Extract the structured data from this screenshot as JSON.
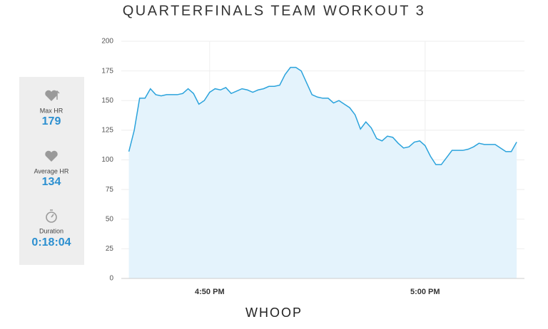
{
  "title": "QUARTERFINALS TEAM WORKOUT 3",
  "stats": [
    {
      "label": "Max HR",
      "value": "179"
    },
    {
      "label": "Average HR",
      "value": "134"
    },
    {
      "label": "Duration",
      "value": "0:18:04"
    }
  ],
  "footer": "WHOOP",
  "chart_data": {
    "type": "line",
    "x": [
      46.25,
      46.5,
      46.75,
      47,
      47.25,
      47.5,
      47.75,
      48,
      48.25,
      48.5,
      48.75,
      49,
      49.25,
      49.5,
      49.75,
      50,
      50.25,
      50.5,
      50.75,
      51,
      51.25,
      51.5,
      51.75,
      52,
      52.25,
      52.5,
      52.75,
      53,
      53.25,
      53.5,
      53.75,
      54,
      54.25,
      54.5,
      54.75,
      55,
      55.25,
      55.5,
      55.75,
      56,
      56.25,
      56.5,
      56.75,
      57,
      57.25,
      57.5,
      57.75,
      58,
      58.25,
      58.5,
      58.75,
      59,
      59.25,
      59.5,
      59.75,
      60,
      60.25,
      60.5,
      60.75,
      61,
      61.25,
      61.5,
      61.75,
      62,
      62.25,
      62.5,
      62.75,
      63,
      63.25,
      63.5,
      63.75,
      64,
      64.25
    ],
    "values": [
      107,
      125,
      152,
      152,
      160,
      155,
      154,
      155,
      155,
      155,
      156,
      160,
      156,
      147,
      150,
      157,
      160,
      159,
      161,
      156,
      158,
      160,
      159,
      157,
      159,
      160,
      162,
      162,
      163,
      172,
      178,
      178,
      175,
      165,
      155,
      153,
      152,
      152,
      148,
      150,
      147,
      144,
      138,
      126,
      132,
      127,
      118,
      116,
      120,
      119,
      114,
      110,
      111,
      115,
      116,
      112,
      103,
      96,
      96,
      102,
      108,
      108,
      108,
      109,
      111,
      114,
      113,
      113,
      113,
      110,
      107,
      107,
      115
    ],
    "color": "#2ba3dc",
    "fill_color": "#e4f3fc",
    "xlim": [
      46.23,
      64.28
    ],
    "ylim": [
      0,
      200
    ],
    "yticks": [
      0,
      25,
      50,
      75,
      100,
      125,
      150,
      175,
      200
    ],
    "xticks": [
      {
        "value": 50,
        "label": "4:50 PM"
      },
      {
        "value": 60,
        "label": "5:00 PM"
      }
    ],
    "grid": true
  }
}
